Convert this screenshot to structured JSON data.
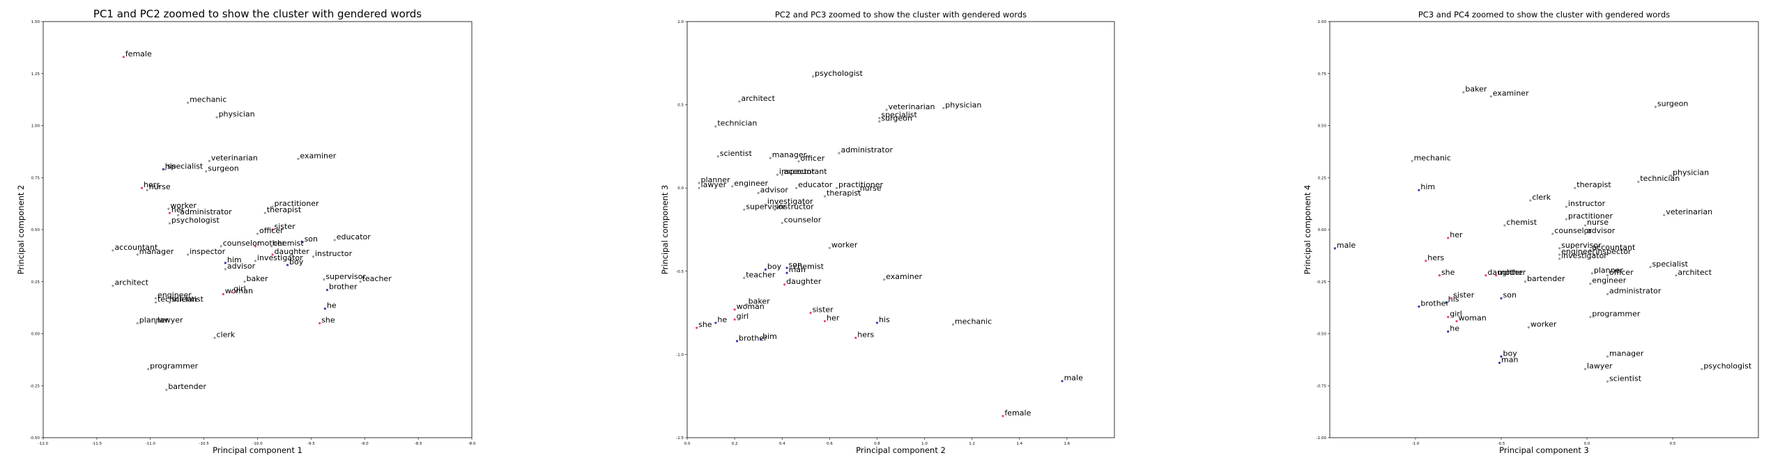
{
  "colors": {
    "male_points": "#3a3ab0",
    "female_points": "#e8456b",
    "neutral_points": "#9a9a9a",
    "frame": "#000000"
  },
  "chart_data": [
    {
      "type": "scatter",
      "title": "PC1 and PC2 zoomed to show the cluster with gendered words",
      "xlabel": "Principal component 1",
      "ylabel": "Principal component 2",
      "xlim": [
        -12.0,
        -8.0
      ],
      "ylim": [
        -0.5,
        1.5
      ],
      "xticks": [
        -12.0,
        -11.5,
        -11.0,
        -10.5,
        -10.0,
        -9.5,
        -9.0,
        -8.5,
        -8.0
      ],
      "xtick_labels": [
        "-12.0",
        "-11.5",
        "-11.0",
        "-10.5",
        "-10.0",
        "-9.5",
        "-9.0",
        "-8.5",
        "-8.0"
      ],
      "yticks": [
        -0.5,
        -0.25,
        0.0,
        0.25,
        0.5,
        0.75,
        1.0,
        1.25,
        1.5
      ],
      "ytick_labels": [
        "-0.50",
        "-0.25",
        "0.00",
        "0.25",
        "0.50",
        "0.75",
        "1.00",
        "1.25",
        "1.50"
      ],
      "grid": false,
      "points": [
        {
          "label": "female",
          "x": -11.25,
          "y": 1.33,
          "g": "f"
        },
        {
          "label": "mechanic",
          "x": -10.65,
          "y": 1.11,
          "g": "n"
        },
        {
          "label": "physician",
          "x": -10.38,
          "y": 1.04,
          "g": "n"
        },
        {
          "label": "veterinarian",
          "x": -10.45,
          "y": 0.83,
          "g": "n"
        },
        {
          "label": "examiner",
          "x": -9.62,
          "y": 0.84,
          "g": "n"
        },
        {
          "label": "his",
          "x": -10.88,
          "y": 0.79,
          "g": "m"
        },
        {
          "label": "specialist",
          "x": -10.86,
          "y": 0.79,
          "g": "n"
        },
        {
          "label": "surgeon",
          "x": -10.48,
          "y": 0.78,
          "g": "n"
        },
        {
          "label": "hers",
          "x": -11.08,
          "y": 0.7,
          "g": "f"
        },
        {
          "label": "nurse",
          "x": -11.03,
          "y": 0.69,
          "g": "n"
        },
        {
          "label": "worker",
          "x": -10.83,
          "y": 0.6,
          "g": "n"
        },
        {
          "label": "practitioner",
          "x": -9.86,
          "y": 0.61,
          "g": "n"
        },
        {
          "label": "therapist",
          "x": -9.93,
          "y": 0.58,
          "g": "n"
        },
        {
          "label": "her",
          "x": -10.82,
          "y": 0.58,
          "g": "f"
        },
        {
          "label": "administrator",
          "x": -10.74,
          "y": 0.57,
          "g": "n"
        },
        {
          "label": "psychologist",
          "x": -10.82,
          "y": 0.53,
          "g": "n"
        },
        {
          "label": "sister",
          "x": -9.86,
          "y": 0.5,
          "g": "f"
        },
        {
          "label": "officer",
          "x": -10.0,
          "y": 0.48,
          "g": "n"
        },
        {
          "label": "educator",
          "x": -9.28,
          "y": 0.45,
          "g": "n"
        },
        {
          "label": "son",
          "x": -9.58,
          "y": 0.44,
          "g": "m"
        },
        {
          "label": "counselor",
          "x": -10.34,
          "y": 0.42,
          "g": "n"
        },
        {
          "label": "mother",
          "x": -10.02,
          "y": 0.42,
          "g": "f"
        },
        {
          "label": "chemist",
          "x": -9.87,
          "y": 0.42,
          "g": "n"
        },
        {
          "label": "accountant",
          "x": -11.35,
          "y": 0.4,
          "g": "n"
        },
        {
          "label": "inspector",
          "x": -10.65,
          "y": 0.38,
          "g": "n"
        },
        {
          "label": "manager",
          "x": -11.12,
          "y": 0.38,
          "g": "n"
        },
        {
          "label": "daughter",
          "x": -9.86,
          "y": 0.38,
          "g": "f"
        },
        {
          "label": "instructor",
          "x": -9.48,
          "y": 0.37,
          "g": "n"
        },
        {
          "label": "investigator",
          "x": -10.02,
          "y": 0.35,
          "g": "n"
        },
        {
          "label": "him",
          "x": -10.3,
          "y": 0.34,
          "g": "m"
        },
        {
          "label": "boy",
          "x": -9.72,
          "y": 0.33,
          "g": "m"
        },
        {
          "label": "advisor",
          "x": -10.3,
          "y": 0.31,
          "g": "n"
        },
        {
          "label": "baker",
          "x": -10.12,
          "y": 0.25,
          "g": "n"
        },
        {
          "label": "supervisor",
          "x": -9.38,
          "y": 0.26,
          "g": "n"
        },
        {
          "label": "teacher",
          "x": -9.04,
          "y": 0.25,
          "g": "n"
        },
        {
          "label": "architect",
          "x": -11.35,
          "y": 0.23,
          "g": "n"
        },
        {
          "label": "brother",
          "x": -9.35,
          "y": 0.21,
          "g": "m"
        },
        {
          "label": "woman",
          "x": -10.32,
          "y": 0.19,
          "g": "f"
        },
        {
          "label": "girl",
          "x": -10.24,
          "y": 0.2,
          "g": "f"
        },
        {
          "label": "engineer",
          "x": -10.95,
          "y": 0.17,
          "g": "n"
        },
        {
          "label": "technician",
          "x": -10.95,
          "y": 0.15,
          "g": "n"
        },
        {
          "label": "scientist",
          "x": -10.82,
          "y": 0.15,
          "g": "n"
        },
        {
          "label": "he",
          "x": -9.37,
          "y": 0.12,
          "g": "m"
        },
        {
          "label": "she",
          "x": -9.42,
          "y": 0.05,
          "g": "f"
        },
        {
          "label": "planner",
          "x": -11.12,
          "y": 0.05,
          "g": "n"
        },
        {
          "label": "lawyer",
          "x": -10.95,
          "y": 0.05,
          "g": "n"
        },
        {
          "label": "clerk",
          "x": -10.4,
          "y": -0.02,
          "g": "n"
        },
        {
          "label": "programmer",
          "x": -11.02,
          "y": -0.17,
          "g": "n"
        },
        {
          "label": "bartender",
          "x": -10.85,
          "y": -0.27,
          "g": "n"
        }
      ]
    },
    {
      "type": "scatter",
      "title": "PC2 and PC3 zoomed to show the cluster with gendered words",
      "xlabel": "Principal component 2",
      "ylabel": "Principal component 3",
      "xlim": [
        0.0,
        1.8
      ],
      "ylim": [
        -1.5,
        1.0
      ],
      "xticks": [
        0.0,
        0.2,
        0.4,
        0.6,
        0.8,
        1.0,
        1.2,
        1.4,
        1.6
      ],
      "xtick_labels": [
        "0.0",
        "0.2",
        "0.4",
        "0.6",
        "0.8",
        "1.0",
        "1.2",
        "1.4",
        "1.6"
      ],
      "yticks": [
        -1.5,
        -1.0,
        -0.5,
        0.0,
        0.5,
        1.0
      ],
      "ytick_labels": [
        "-1.5",
        "-1.0",
        "-0.5",
        "0.0",
        "0.5",
        "1.0"
      ],
      "grid": false,
      "points": [
        {
          "label": "psychologist",
          "x": 0.53,
          "y": 0.67,
          "g": "n"
        },
        {
          "label": "architect",
          "x": 0.22,
          "y": 0.52,
          "g": "n"
        },
        {
          "label": "veterinarian",
          "x": 0.84,
          "y": 0.47,
          "g": "n"
        },
        {
          "label": "physician",
          "x": 1.08,
          "y": 0.48,
          "g": "n"
        },
        {
          "label": "specialist",
          "x": 0.81,
          "y": 0.42,
          "g": "n"
        },
        {
          "label": "surgeon",
          "x": 0.81,
          "y": 0.4,
          "g": "n"
        },
        {
          "label": "technician",
          "x": 0.12,
          "y": 0.37,
          "g": "n"
        },
        {
          "label": "administrator",
          "x": 0.64,
          "y": 0.21,
          "g": "n"
        },
        {
          "label": "scientist",
          "x": 0.13,
          "y": 0.19,
          "g": "n"
        },
        {
          "label": "manager",
          "x": 0.35,
          "y": 0.18,
          "g": "n"
        },
        {
          "label": "officer",
          "x": 0.47,
          "y": 0.16,
          "g": "n"
        },
        {
          "label": "inspector",
          "x": 0.38,
          "y": 0.08,
          "g": "n"
        },
        {
          "label": "accountant",
          "x": 0.4,
          "y": 0.08,
          "g": "n"
        },
        {
          "label": "planner",
          "x": 0.05,
          "y": 0.03,
          "g": "n"
        },
        {
          "label": "engineer",
          "x": 0.19,
          "y": 0.01,
          "g": "n"
        },
        {
          "label": "lawyer",
          "x": 0.05,
          "y": 0.0,
          "g": "n"
        },
        {
          "label": "educator",
          "x": 0.46,
          "y": 0.0,
          "g": "n"
        },
        {
          "label": "practitioner",
          "x": 0.63,
          "y": 0.0,
          "g": "n"
        },
        {
          "label": "nurse",
          "x": 0.72,
          "y": -0.02,
          "g": "n"
        },
        {
          "label": "advisor",
          "x": 0.3,
          "y": -0.03,
          "g": "n"
        },
        {
          "label": "therapist",
          "x": 0.58,
          "y": -0.05,
          "g": "n"
        },
        {
          "label": "investigator",
          "x": 0.33,
          "y": -0.1,
          "g": "n"
        },
        {
          "label": "supervisor",
          "x": 0.24,
          "y": -0.13,
          "g": "n"
        },
        {
          "label": "instructor",
          "x": 0.37,
          "y": -0.13,
          "g": "n"
        },
        {
          "label": "counselor",
          "x": 0.4,
          "y": -0.21,
          "g": "n"
        },
        {
          "label": "worker",
          "x": 0.6,
          "y": -0.36,
          "g": "n"
        },
        {
          "label": "boy",
          "x": 0.33,
          "y": -0.49,
          "g": "m"
        },
        {
          "label": "son",
          "x": 0.42,
          "y": -0.48,
          "g": "m"
        },
        {
          "label": "man",
          "x": 0.42,
          "y": -0.51,
          "g": "m"
        },
        {
          "label": "chemist",
          "x": 0.44,
          "y": -0.49,
          "g": "n"
        },
        {
          "label": "teacher",
          "x": 0.24,
          "y": -0.54,
          "g": "n"
        },
        {
          "label": "examiner",
          "x": 0.83,
          "y": -0.55,
          "g": "n"
        },
        {
          "label": "daughter",
          "x": 0.41,
          "y": -0.58,
          "g": "f"
        },
        {
          "label": "baker",
          "x": 0.25,
          "y": -0.7,
          "g": "n"
        },
        {
          "label": "woman",
          "x": 0.2,
          "y": -0.73,
          "g": "f"
        },
        {
          "label": "sister",
          "x": 0.52,
          "y": -0.75,
          "g": "f"
        },
        {
          "label": "girl",
          "x": 0.2,
          "y": -0.79,
          "g": "f"
        },
        {
          "label": "her",
          "x": 0.58,
          "y": -0.8,
          "g": "f"
        },
        {
          "label": "he",
          "x": 0.12,
          "y": -0.81,
          "g": "m"
        },
        {
          "label": "his",
          "x": 0.8,
          "y": -0.81,
          "g": "m"
        },
        {
          "label": "mechanic",
          "x": 1.12,
          "y": -0.82,
          "g": "n"
        },
        {
          "label": "she",
          "x": 0.04,
          "y": -0.84,
          "g": "f"
        },
        {
          "label": "hers",
          "x": 0.71,
          "y": -0.9,
          "g": "f"
        },
        {
          "label": "brother",
          "x": 0.21,
          "y": -0.92,
          "g": "m"
        },
        {
          "label": "him",
          "x": 0.31,
          "y": -0.91,
          "g": "m"
        },
        {
          "label": "male",
          "x": 1.58,
          "y": -1.16,
          "g": "m"
        },
        {
          "label": "female",
          "x": 1.33,
          "y": -1.37,
          "g": "f"
        }
      ]
    },
    {
      "type": "scatter",
      "title": "PC3 and PC4 zoomed to show the cluster with gendered words",
      "xlabel": "Principal component 3",
      "ylabel": "Principal component 4",
      "xlim": [
        -1.5,
        1.0
      ],
      "ylim": [
        -1.0,
        1.0
      ],
      "xticks": [
        -1.0,
        -0.5,
        0.0,
        0.5
      ],
      "xtick_labels": [
        "-1.0",
        "-0.5",
        "0.0",
        "0.5"
      ],
      "yticks": [
        -1.0,
        -0.75,
        -0.5,
        -0.25,
        0.0,
        0.25,
        0.5,
        0.75,
        1.0
      ],
      "ytick_labels": [
        "-1.00",
        "-0.75",
        "-0.50",
        "-0.25",
        "0.00",
        "0.25",
        "0.50",
        "0.75",
        "1.00"
      ],
      "grid": false,
      "points": [
        {
          "label": "baker",
          "x": -0.72,
          "y": 0.66,
          "g": "n"
        },
        {
          "label": "examiner",
          "x": -0.56,
          "y": 0.64,
          "g": "n"
        },
        {
          "label": "surgeon",
          "x": 0.4,
          "y": 0.59,
          "g": "n"
        },
        {
          "label": "mechanic",
          "x": -1.02,
          "y": 0.33,
          "g": "n"
        },
        {
          "label": "physician",
          "x": 0.49,
          "y": 0.26,
          "g": "n"
        },
        {
          "label": "technician",
          "x": 0.3,
          "y": 0.23,
          "g": "n"
        },
        {
          "label": "him",
          "x": -0.98,
          "y": 0.19,
          "g": "m"
        },
        {
          "label": "therapist",
          "x": -0.07,
          "y": 0.2,
          "g": "n"
        },
        {
          "label": "clerk",
          "x": -0.33,
          "y": 0.14,
          "g": "n"
        },
        {
          "label": "instructor",
          "x": -0.12,
          "y": 0.11,
          "g": "n"
        },
        {
          "label": "veterinarian",
          "x": 0.45,
          "y": 0.07,
          "g": "n"
        },
        {
          "label": "practitioner",
          "x": -0.12,
          "y": 0.05,
          "g": "n"
        },
        {
          "label": "chemist",
          "x": -0.48,
          "y": 0.02,
          "g": "n"
        },
        {
          "label": "nurse",
          "x": -0.01,
          "y": 0.02,
          "g": "n"
        },
        {
          "label": "counselor",
          "x": -0.2,
          "y": -0.02,
          "g": "n"
        },
        {
          "label": "advisor",
          "x": -0.01,
          "y": -0.02,
          "g": "n"
        },
        {
          "label": "her",
          "x": -0.81,
          "y": -0.04,
          "g": "f"
        },
        {
          "label": "male",
          "x": -1.47,
          "y": -0.09,
          "g": "m"
        },
        {
          "label": "supervisor",
          "x": -0.16,
          "y": -0.09,
          "g": "n"
        },
        {
          "label": "accountant",
          "x": 0.02,
          "y": -0.1,
          "g": "n"
        },
        {
          "label": "engineer",
          "x": -0.16,
          "y": -0.12,
          "g": "n"
        },
        {
          "label": "inspector",
          "x": 0.04,
          "y": -0.12,
          "g": "n"
        },
        {
          "label": "investigator",
          "x": -0.16,
          "y": -0.14,
          "g": "n"
        },
        {
          "label": "hers",
          "x": -0.94,
          "y": -0.15,
          "g": "f"
        },
        {
          "label": "specialist",
          "x": 0.37,
          "y": -0.18,
          "g": "n"
        },
        {
          "label": "she",
          "x": -0.86,
          "y": -0.22,
          "g": "f"
        },
        {
          "label": "daughter",
          "x": -0.59,
          "y": -0.22,
          "g": "f"
        },
        {
          "label": "mother",
          "x": -0.53,
          "y": -0.22,
          "g": "f"
        },
        {
          "label": "planner",
          "x": 0.03,
          "y": -0.21,
          "g": "n"
        },
        {
          "label": "officer",
          "x": 0.12,
          "y": -0.22,
          "g": "n"
        },
        {
          "label": "architect",
          "x": 0.52,
          "y": -0.22,
          "g": "n"
        },
        {
          "label": "bartender",
          "x": -0.36,
          "y": -0.25,
          "g": "n"
        },
        {
          "label": "engineer",
          "x": 0.02,
          "y": -0.26,
          "g": "n"
        },
        {
          "label": "administrator",
          "x": 0.12,
          "y": -0.31,
          "g": "n"
        },
        {
          "label": "his",
          "x": -0.82,
          "y": -0.35,
          "g": "m"
        },
        {
          "label": "sister",
          "x": -0.79,
          "y": -0.33,
          "g": "f"
        },
        {
          "label": "son",
          "x": -0.5,
          "y": -0.33,
          "g": "m"
        },
        {
          "label": "brother",
          "x": -0.98,
          "y": -0.37,
          "g": "m"
        },
        {
          "label": "programmer",
          "x": 0.02,
          "y": -0.42,
          "g": "n"
        },
        {
          "label": "girl",
          "x": -0.81,
          "y": -0.42,
          "g": "f"
        },
        {
          "label": "woman",
          "x": -0.76,
          "y": -0.44,
          "g": "f"
        },
        {
          "label": "worker",
          "x": -0.34,
          "y": -0.47,
          "g": "n"
        },
        {
          "label": "he",
          "x": -0.81,
          "y": -0.49,
          "g": "m"
        },
        {
          "label": "boy",
          "x": -0.5,
          "y": -0.61,
          "g": "m"
        },
        {
          "label": "manager",
          "x": 0.12,
          "y": -0.61,
          "g": "n"
        },
        {
          "label": "man",
          "x": -0.51,
          "y": -0.64,
          "g": "m"
        },
        {
          "label": "lawyer",
          "x": -0.01,
          "y": -0.67,
          "g": "n"
        },
        {
          "label": "psychologist",
          "x": 0.67,
          "y": -0.67,
          "g": "n"
        },
        {
          "label": "scientist",
          "x": 0.12,
          "y": -0.73,
          "g": "n"
        }
      ]
    }
  ]
}
